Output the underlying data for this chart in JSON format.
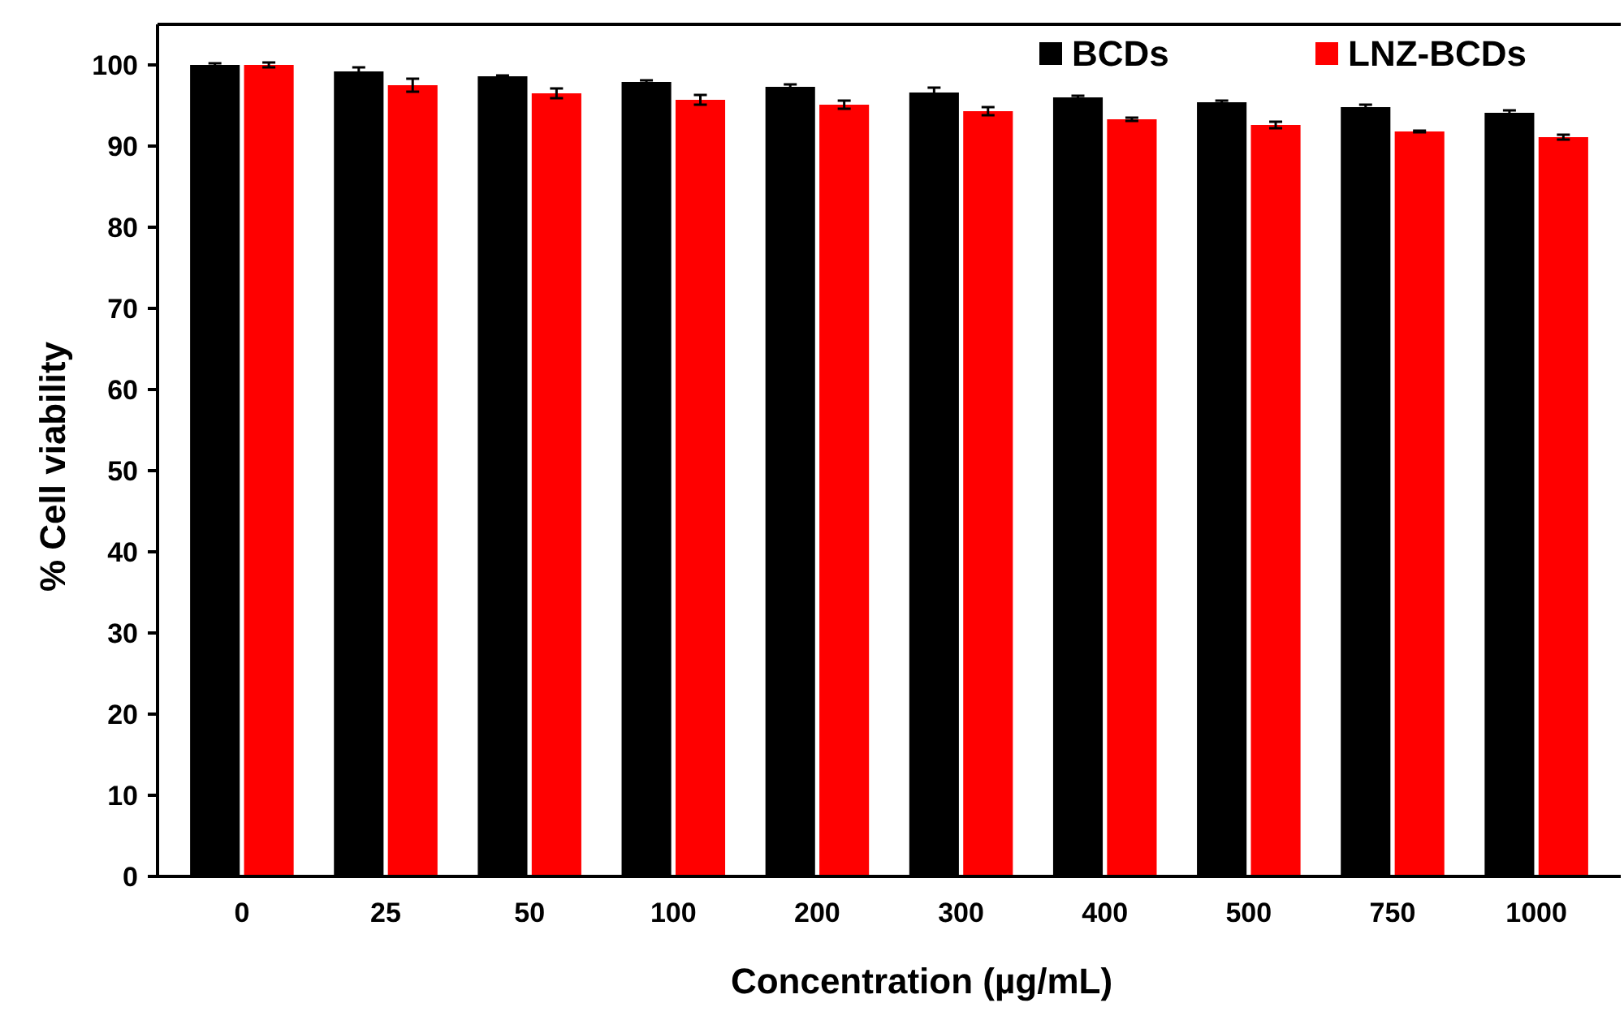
{
  "chart_data": {
    "type": "bar",
    "xlabel": "Concentration (µg/mL)",
    "ylabel": "% Cell viability",
    "categories": [
      "0",
      "25",
      "50",
      "100",
      "200",
      "300",
      "400",
      "500",
      "750",
      "1000"
    ],
    "series": [
      {
        "name": "BCDs",
        "color": "#000000",
        "values": [
          100,
          99.2,
          98.6,
          97.9,
          97.3,
          96.6,
          96.0,
          95.4,
          94.8,
          94.1
        ],
        "errors": [
          0.2,
          0.5,
          0.1,
          0.2,
          0.3,
          0.6,
          0.2,
          0.2,
          0.3,
          0.3
        ]
      },
      {
        "name": "LNZ-BCDs",
        "color": "#ff0000",
        "values": [
          100,
          97.5,
          96.5,
          95.7,
          95.1,
          94.3,
          93.3,
          92.6,
          91.8,
          91.1
        ],
        "errors": [
          0.3,
          0.8,
          0.6,
          0.6,
          0.5,
          0.5,
          0.2,
          0.4,
          0.1,
          0.3
        ]
      }
    ],
    "ylim": [
      0,
      105
    ],
    "yticks": [
      0,
      10,
      20,
      30,
      40,
      50,
      60,
      70,
      80,
      90,
      100
    ],
    "grid": false,
    "legend": "top right"
  }
}
